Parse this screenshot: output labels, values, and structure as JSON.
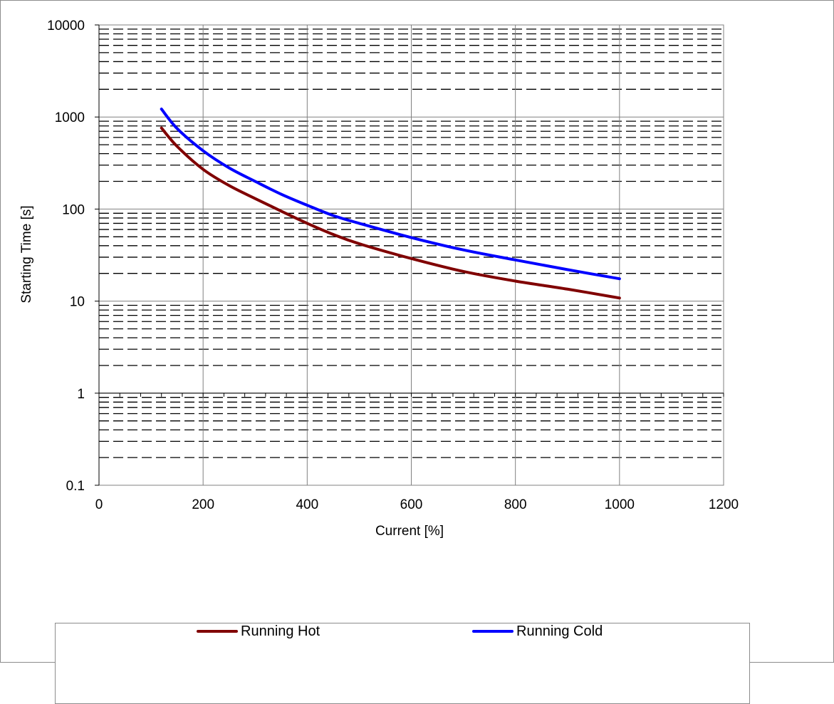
{
  "chart_data": {
    "type": "line",
    "title": "",
    "xlabel": "Current [%]",
    "ylabel": "Starting Time [s]",
    "xlim": [
      0,
      1200
    ],
    "ylim": [
      0.1,
      10000
    ],
    "yscale": "log",
    "x_ticks": [
      "0",
      "200",
      "400",
      "600",
      "800",
      "1000",
      "1200"
    ],
    "y_ticks": [
      "0.1",
      "1",
      "10",
      "100",
      "1000",
      "10000"
    ],
    "grid": "major vertical and horizontal solid, minor horizontal dashed",
    "legend_position": "bottom",
    "series": [
      {
        "name": "Running Hot",
        "color": "#800000",
        "x": [
          120,
          150,
          200,
          250,
          300,
          350,
          400,
          450,
          500,
          600,
          700,
          800,
          900,
          1000
        ],
        "y": [
          760,
          480,
          270,
          180,
          130,
          95,
          70,
          53,
          42,
          29,
          21,
          16.5,
          13.5,
          10.8
        ]
      },
      {
        "name": "Running Cold",
        "color": "#0000ff",
        "x": [
          120,
          150,
          200,
          250,
          300,
          350,
          400,
          450,
          500,
          600,
          700,
          800,
          900,
          1000
        ],
        "y": [
          1220,
          750,
          430,
          280,
          200,
          145,
          110,
          85,
          70,
          49,
          36,
          28,
          22,
          17.5
        ]
      }
    ]
  }
}
